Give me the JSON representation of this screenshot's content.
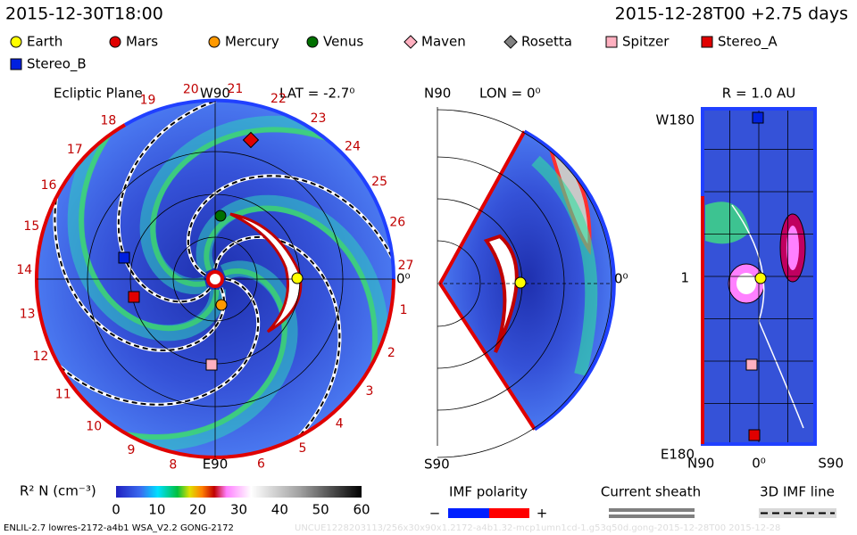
{
  "header": {
    "time_left": "2015-12-30T18:00",
    "time_right": "2015-12-28T00 +2.75 days"
  },
  "legend": [
    "Earth",
    "Mars",
    "Mercury",
    "Venus",
    "Maven",
    "Rosetta",
    "Spitzer",
    "Stereo_A",
    "Stereo_B"
  ],
  "ecliptic": {
    "title": "Ecliptic Plane",
    "top": "W90",
    "lat": "LAT = -2.7⁰",
    "bottom": "E90",
    "right": "0⁰",
    "carrington": [
      1,
      2,
      3,
      4,
      5,
      6,
      8,
      9,
      10,
      11,
      12,
      13,
      14,
      15,
      16,
      17,
      18,
      19,
      20,
      21,
      22,
      23,
      24,
      25,
      26,
      27
    ]
  },
  "meridional": {
    "top": "N90",
    "lon": "LON = 0⁰",
    "bottom": "S90",
    "right": "0⁰"
  },
  "radial": {
    "title": "R = 1.0 AU",
    "top": "W180",
    "bottom": "E180",
    "mid": "1",
    "x_left": "N90",
    "x_mid": "0⁰",
    "x_right": "S90"
  },
  "colorbar": {
    "label": "R² N (cm⁻³)",
    "ticks": [
      "0",
      "10",
      "20",
      "30",
      "40",
      "50",
      "60"
    ]
  },
  "keys": {
    "imf": "IMF polarity",
    "minus": "−",
    "plus": "+",
    "sheath": "Current sheath",
    "line3d": "3D IMF line"
  },
  "footer": {
    "run": "ENLIL-2.7 lowres-2172-a4b1 WSA_V2.2 GONG-2172",
    "id": "UNCUE1228203113/256x30x90x1.2172-a4b1.32-mcp1umn1cd-1.g53q50d.gong-2015-12-28T00   2015-12-28"
  }
}
